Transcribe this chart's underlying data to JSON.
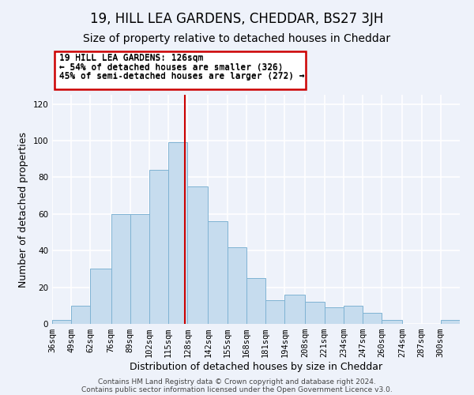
{
  "title": "19, HILL LEA GARDENS, CHEDDAR, BS27 3JH",
  "subtitle": "Size of property relative to detached houses in Cheddar",
  "xlabel": "Distribution of detached houses by size in Cheddar",
  "ylabel": "Number of detached properties",
  "bar_labels": [
    "36sqm",
    "49sqm",
    "62sqm",
    "76sqm",
    "89sqm",
    "102sqm",
    "115sqm",
    "128sqm",
    "142sqm",
    "155sqm",
    "168sqm",
    "181sqm",
    "194sqm",
    "208sqm",
    "221sqm",
    "234sqm",
    "247sqm",
    "260sqm",
    "274sqm",
    "287sqm",
    "300sqm"
  ],
  "bar_values": [
    2,
    10,
    30,
    60,
    60,
    84,
    99,
    75,
    56,
    42,
    25,
    13,
    16,
    12,
    9,
    10,
    6,
    2,
    0,
    0,
    2
  ],
  "bar_color": "#c6dcee",
  "bar_edge_color": "#7fb3d3",
  "property_line_x": 126,
  "bin_edges": [
    36,
    49,
    62,
    76,
    89,
    102,
    115,
    128,
    142,
    155,
    168,
    181,
    194,
    208,
    221,
    234,
    247,
    260,
    274,
    287,
    300
  ],
  "annotation_title": "19 HILL LEA GARDENS: 126sqm",
  "annotation_line1": "← 54% of detached houses are smaller (326)",
  "annotation_line2": "45% of semi-detached houses are larger (272) →",
  "annotation_box_color": "#ffffff",
  "annotation_box_edge": "#cc0000",
  "vline_color": "#cc0000",
  "ylim": [
    0,
    125
  ],
  "yticks": [
    0,
    20,
    40,
    60,
    80,
    100,
    120
  ],
  "footer1": "Contains HM Land Registry data © Crown copyright and database right 2024.",
  "footer2": "Contains public sector information licensed under the Open Government Licence v3.0.",
  "bg_color": "#eef2fa",
  "grid_color": "#ffffff",
  "title_fontsize": 12,
  "subtitle_fontsize": 10,
  "axis_label_fontsize": 9,
  "tick_fontsize": 7.5,
  "footer_fontsize": 6.5
}
